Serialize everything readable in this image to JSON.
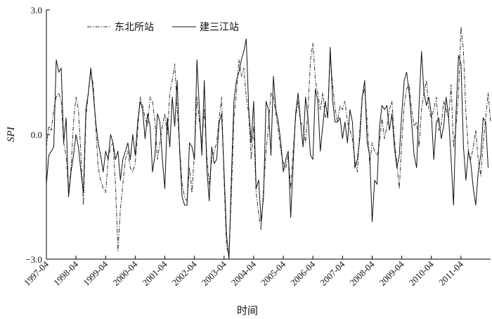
{
  "chart_data": {
    "type": "line",
    "title": "",
    "xlabel": "时间",
    "ylabel": "SPI",
    "ylim": [
      -3.0,
      3.0
    ],
    "yticks": [
      "3.0",
      "0.0",
      "−3.0"
    ],
    "yticks_values": [
      3.0,
      0.0,
      -3.0
    ],
    "x_start": "1997-04",
    "x_step": "month",
    "x_tick_labels": [
      "1997-04",
      "1998-04",
      "1999-04",
      "2000-04",
      "2001-04",
      "2002-04",
      "2003-04",
      "2004-04",
      "2005-04",
      "2006-04",
      "2007-04",
      "2008-04",
      "2009-04",
      "2010-04",
      "2011-04"
    ],
    "legend_position": "top-left",
    "series": [
      {
        "name": "东北所站",
        "style": "dash-dot",
        "color": "#333333",
        "values": [
          -0.3,
          0.2,
          0.1,
          0.6,
          0.9,
          1.0,
          0.8,
          -0.2,
          -0.5,
          -1.4,
          -0.8,
          0.3,
          0.9,
          0.6,
          -0.5,
          -1.7,
          0.4,
          1.0,
          1.5,
          1.2,
          0.2,
          -0.8,
          -1.1,
          -1.3,
          -1.4,
          -0.6,
          -0.3,
          -0.2,
          -1.2,
          -2.8,
          -1.8,
          -1.2,
          -0.6,
          -0.4,
          -0.8,
          -0.9,
          -0.7,
          0.1,
          0.9,
          0.7,
          0.4,
          0.2,
          0.9,
          0.8,
          0.3,
          -0.6,
          -0.2,
          0.2,
          0.5,
          0.0,
          1.0,
          1.3,
          1.7,
          0.6,
          -0.3,
          -1.2,
          -1.5,
          -1.6,
          -0.8,
          -1.4,
          -0.4,
          0.9,
          0.3,
          -0.2,
          0.6,
          -0.5,
          -1.2,
          -0.6,
          -0.4,
          -0.2,
          0.4,
          0.9,
          -1.1,
          -2.7,
          -2.9,
          -1.4,
          0.4,
          1.0,
          1.8,
          1.4,
          1.6,
          0.9,
          0.5,
          -0.6,
          0.2,
          -1.4,
          -1.9,
          -2.3,
          -1.3,
          -0.4,
          0.2,
          1.0,
          0.9,
          0.5,
          0.1,
          -0.4,
          -0.7,
          -0.8,
          -0.5,
          -1.3,
          -0.4,
          0.4,
          0.8,
          0.3,
          0.2,
          -0.2,
          0.6,
          1.8,
          2.2,
          1.3,
          1.0,
          0.6,
          1.0,
          0.4,
          0.5,
          1.9,
          1.2,
          0.6,
          0.3,
          0.7,
          0.6,
          0.8,
          0.3,
          0.1,
          -0.1,
          -0.6,
          -0.9,
          0.1,
          0.9,
          1.1,
          0.3,
          -0.7,
          -0.2,
          -0.4,
          -0.5,
          -0.2,
          0.4,
          -0.1,
          0.2,
          0.6,
          0.8,
          -0.1,
          -0.7,
          -1.3,
          -0.2,
          0.7,
          1.1,
          1.2,
          0.6,
          0.2,
          0.3,
          -0.3,
          0.6,
          1.0,
          1.3,
          0.6,
          0.4,
          0.6,
          0.9,
          0.1,
          0.2,
          0.8,
          0.6,
          0.4,
          1.2,
          -0.3,
          0.2,
          1.0,
          2.6,
          2.0,
          0.5,
          -0.4,
          -0.6,
          -0.3,
          0.1,
          -0.6,
          -1.0,
          -0.2,
          0.4,
          1.0,
          0.3
        ]
      },
      {
        "name": "建三江站",
        "style": "solid",
        "color": "#111111",
        "values": [
          -1.2,
          -0.5,
          -0.4,
          -0.3,
          1.8,
          1.5,
          1.6,
          -0.2,
          0.4,
          -1.5,
          -0.9,
          -0.5,
          0.0,
          -0.3,
          -0.9,
          -1.4,
          0.6,
          1.0,
          1.6,
          1.0,
          0.3,
          -0.2,
          -0.5,
          -0.9,
          -0.4,
          -0.6,
          0.0,
          -0.2,
          -0.6,
          -0.4,
          -1.1,
          -0.6,
          -0.4,
          -0.2,
          -0.6,
          0.0,
          -0.5,
          0.3,
          0.8,
          0.6,
          -0.1,
          0.5,
          0.2,
          -0.9,
          -0.5,
          0.5,
          0.3,
          -0.6,
          -1.3,
          0.4,
          -0.3,
          0.9,
          0.2,
          1.3,
          -0.4,
          -1.5,
          -1.7,
          -1.7,
          -0.2,
          -0.3,
          -0.6,
          1.8,
          0.6,
          -0.5,
          1.3,
          -0.8,
          -1.6,
          -0.3,
          -0.7,
          -0.6,
          0.3,
          0.5,
          -0.9,
          -2.4,
          -3.0,
          -1.0,
          0.8,
          1.3,
          1.5,
          1.8,
          2.0,
          2.3,
          0.6,
          -0.2,
          0.8,
          -1.3,
          -1.1,
          -2.1,
          -1.5,
          0.8,
          0.6,
          -0.5,
          1.4,
          0.6,
          0.3,
          -0.2,
          -0.9,
          -0.6,
          -0.4,
          -2.0,
          -0.7,
          0.5,
          1.0,
          0.3,
          -0.3,
          0.9,
          0.4,
          -0.5,
          -0.6,
          1.1,
          0.8,
          -0.4,
          0.2,
          0.8,
          0.4,
          2.1,
          0.8,
          0.3,
          0.3,
          0.4,
          -0.1,
          0.3,
          -0.2,
          0.6,
          0.3,
          -0.8,
          -0.6,
          -0.1,
          0.9,
          1.3,
          -0.2,
          -0.5,
          -2.1,
          -1.1,
          -1.2,
          0.2,
          0.7,
          0.6,
          0.7,
          0.1,
          0.5,
          -0.3,
          -0.8,
          -0.5,
          0.5,
          1.3,
          1.5,
          1.0,
          0.3,
          -0.5,
          -0.8,
          0.7,
          2.0,
          1.0,
          0.7,
          0.9,
          0.5,
          -0.6,
          0.3,
          0.4,
          -0.1,
          0.2,
          0.9,
          0.4,
          -0.6,
          -1.7,
          0.5,
          1.9,
          1.7,
          -0.3,
          -1.1,
          -0.4,
          -0.7,
          -1.3,
          -1.7,
          -0.9,
          -0.5,
          0.4,
          0.3,
          -0.8
        ]
      }
    ]
  }
}
